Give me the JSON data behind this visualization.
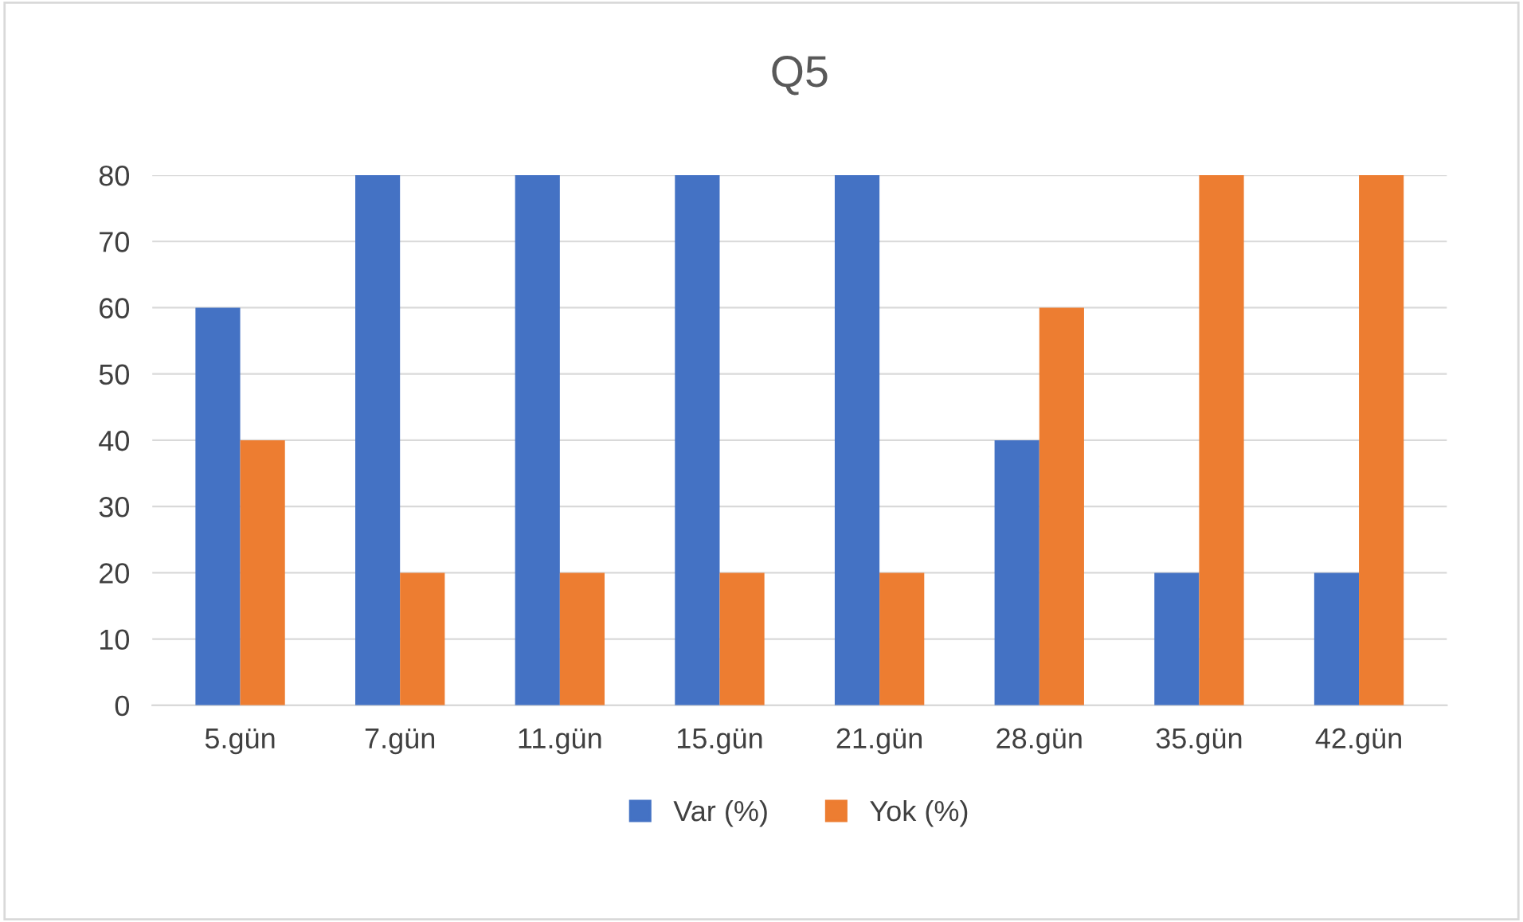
{
  "chart_data": {
    "type": "bar",
    "title": "Q5",
    "categories": [
      "5.gün",
      "7.gün",
      "11.gün",
      "15.gün",
      "21.gün",
      "28.gün",
      "35.gün",
      "42.gün"
    ],
    "series": [
      {
        "name": "Var (%)",
        "color": "#4472c4",
        "values": [
          60,
          80,
          80,
          80,
          80,
          40,
          20,
          20
        ]
      },
      {
        "name": "Yok (%)",
        "color": "#ed7d31",
        "values": [
          40,
          20,
          20,
          20,
          20,
          60,
          80,
          80
        ]
      }
    ],
    "ylim": [
      0,
      80
    ],
    "yticks": [
      0,
      10,
      20,
      30,
      40,
      50,
      60,
      70,
      80
    ],
    "grid": "y",
    "legend": "bottom"
  }
}
